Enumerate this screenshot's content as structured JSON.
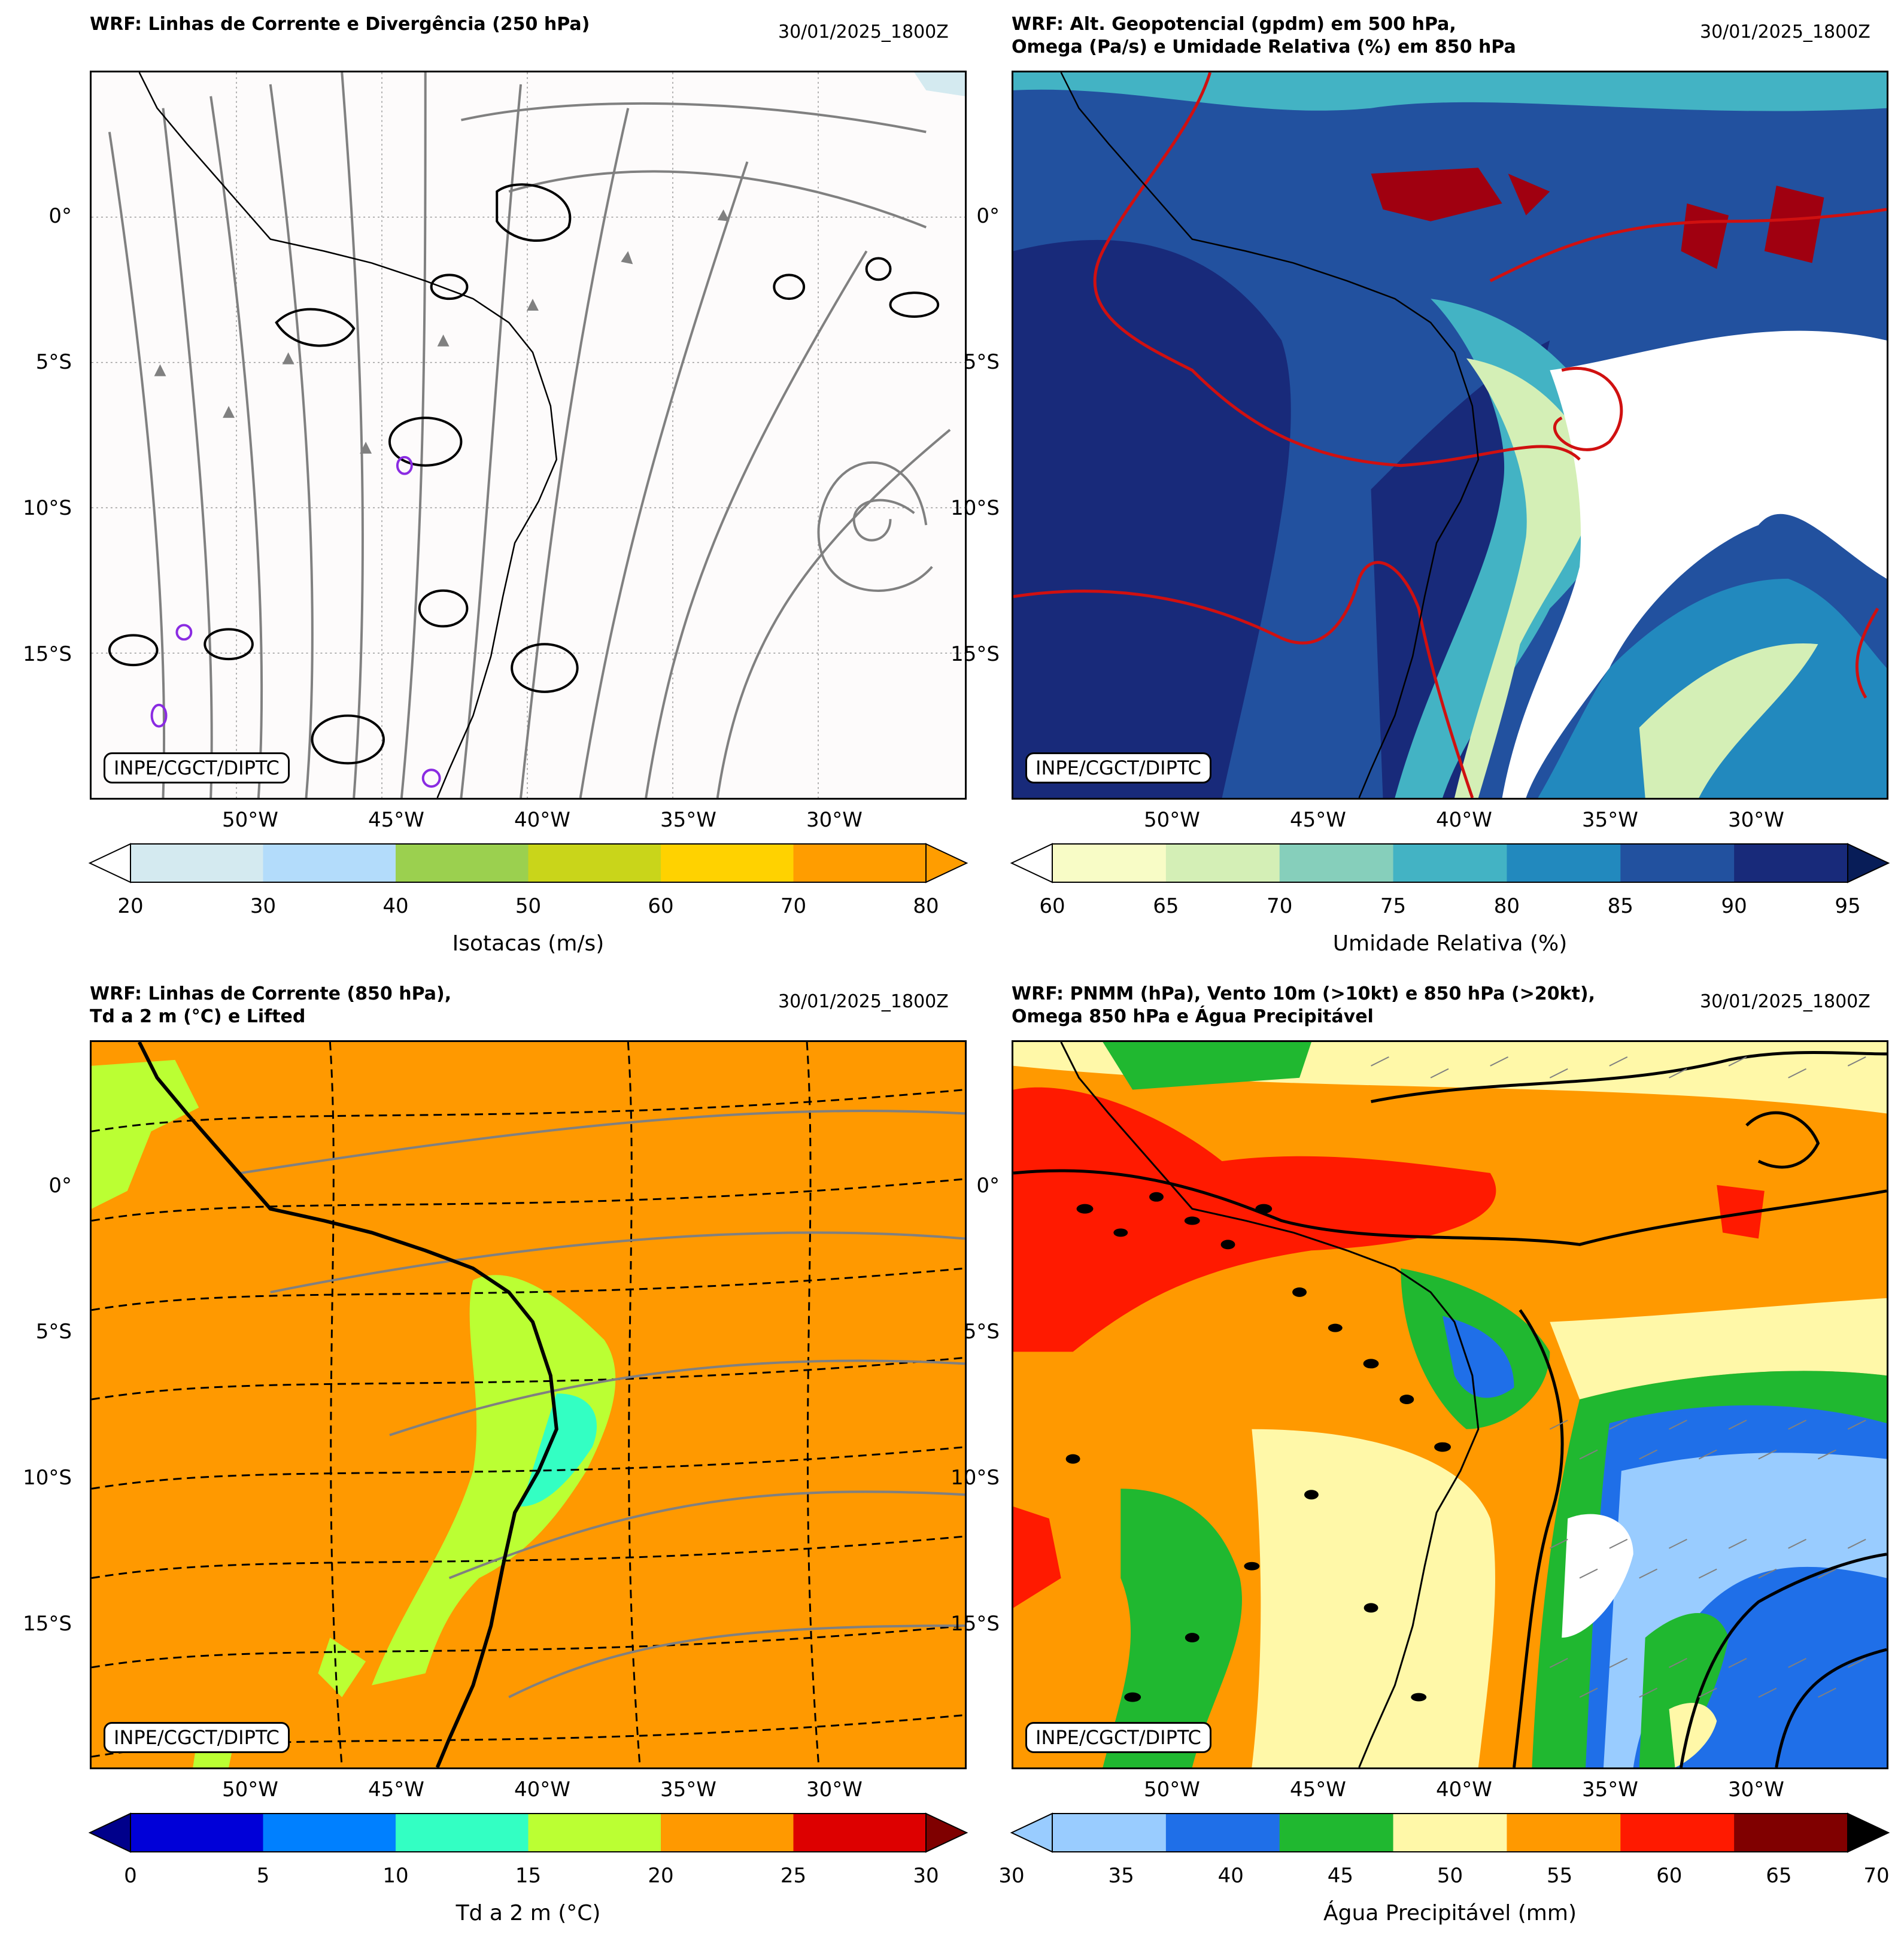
{
  "lat_labels": [
    "0°",
    "5°S",
    "10°S",
    "15°S"
  ],
  "lon_labels": [
    "50°W",
    "45°W",
    "40°W",
    "35°W",
    "30°W"
  ],
  "credit": "INPE/CGCT/DIPTC",
  "panels": [
    {
      "title": "WRF: Linhas de Corrente e Divergência (250 hPa)",
      "timestamp": "30/01/2025_1800Z",
      "colorbar": {
        "label": "Isotacas (m/s)",
        "ticks": [
          "20",
          "30",
          "40",
          "50",
          "60",
          "70",
          "80"
        ],
        "colors": [
          "#d4eaf0",
          "#b3dcfb",
          "#9bd04f",
          "#c9d51a",
          "#ffd200",
          "#ff9d00"
        ],
        "under": "#ffffff",
        "over": "#ff9d00"
      }
    },
    {
      "title": "WRF: Alt. Geopotencial (gpdm) em 500 hPa,\nOmega (Pa/s) e Umidade Relativa (%) em 850 hPa",
      "timestamp": "30/01/2025_1800Z",
      "colorbar": {
        "label": "Umidade Relativa (%)",
        "ticks": [
          "60",
          "65",
          "70",
          "75",
          "80",
          "85",
          "90",
          "95"
        ],
        "colors": [
          "#f8fcc6",
          "#d4efb6",
          "#86cfbb",
          "#43b3c4",
          "#2289be",
          "#22519f",
          "#182a7a"
        ],
        "under": "#ffffff",
        "over": "#081d58"
      }
    },
    {
      "title": "WRF: Linhas de Corrente (850 hPa),\nTd a 2 m (°C) e Lifted",
      "timestamp": "30/01/2025_1800Z",
      "colorbar": {
        "label": "Td a 2 m (°C)",
        "ticks": [
          "0",
          "5",
          "10",
          "15",
          "20",
          "25",
          "30"
        ],
        "colors": [
          "#0000d8",
          "#0080ff",
          "#33ffc3",
          "#bbff33",
          "#ff9900",
          "#dd0000"
        ],
        "under": "#00008b",
        "over": "#7f0000"
      }
    },
    {
      "title": "WRF: PNMM (hPa), Vento 10m (>10kt) e 850 hPa (>20kt),\nOmega 850 hPa e Água Precipitável",
      "timestamp": "30/01/2025_1800Z",
      "colorbar": {
        "label": "Água Precipitável (mm)",
        "ticks": [
          "30",
          "35",
          "40",
          "45",
          "50",
          "55",
          "60",
          "65",
          "70"
        ],
        "colors": [
          "#99ccff",
          "#1f6fe8",
          "#20b830",
          "#fff8a8",
          "#ff9900",
          "#ff1a00",
          "#800000"
        ],
        "under": "#99ccff",
        "over": "#000000"
      }
    }
  ]
}
